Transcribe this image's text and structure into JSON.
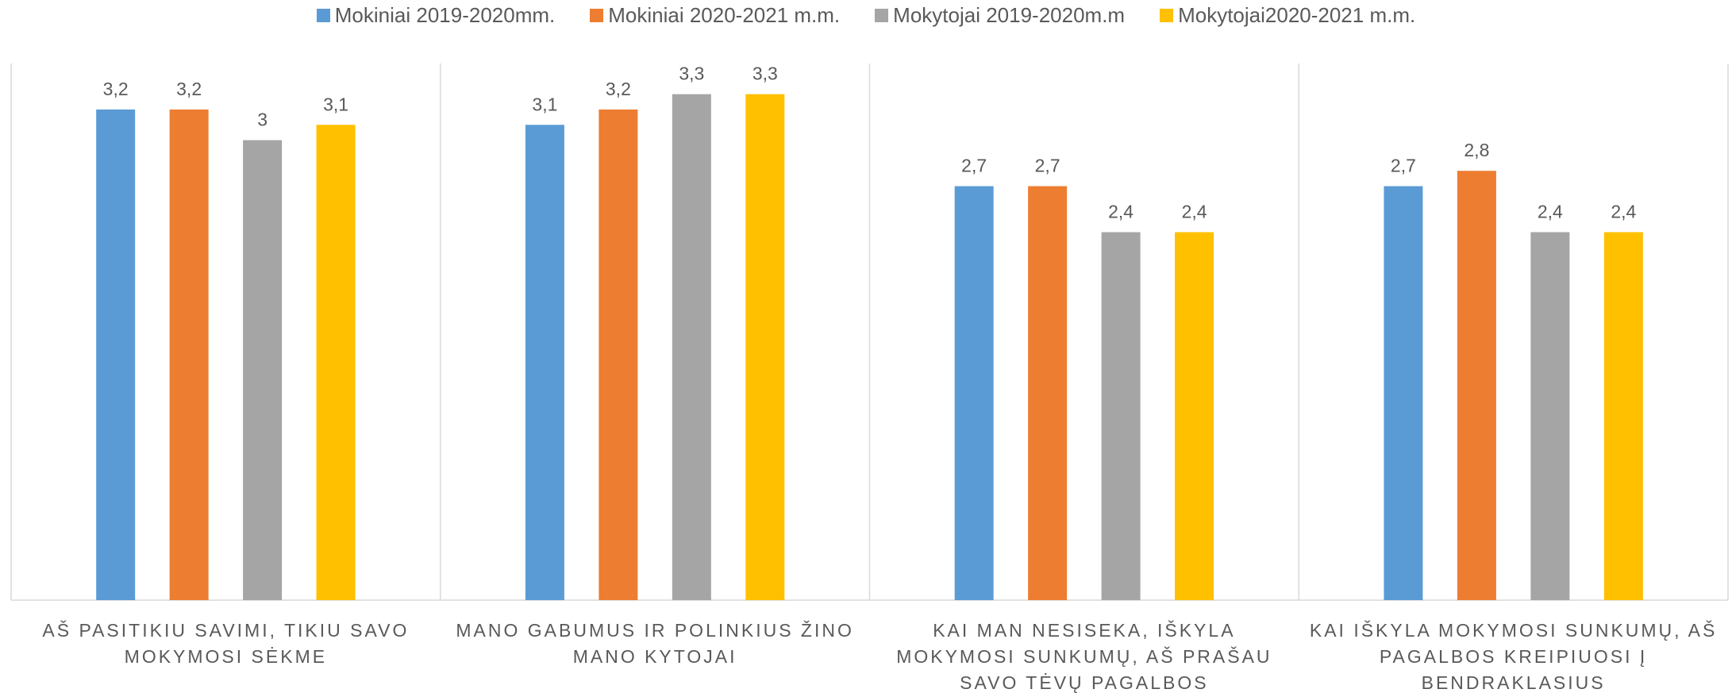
{
  "chart_data": {
    "type": "bar",
    "categories": [
      "AŠ PASITIKIU SAVIMI, TIKIU SAVO MOKYMOSI SĖKME",
      "MANO GABUMUS IR POLINKIUS ŽINO MANO KYTOJAI",
      "KAI MAN NESISEKA, IŠKYLA MOKYMOSI SUNKUMŲ, AŠ PRAŠAU SAVO TĖVŲ PAGALBOS",
      "KAI IŠKYLA MOKYMOSI SUNKUMŲ, AŠ PAGALBOS KREIPIUOSI Į BENDRAKLASIUS"
    ],
    "series": [
      {
        "name": "Mokiniai 2019-2020mm.",
        "color": "#5b9bd5",
        "values": [
          3.2,
          3.1,
          2.7,
          2.7
        ],
        "value_labels": [
          "3,2",
          "3,1",
          "2,7",
          "2,7"
        ]
      },
      {
        "name": "Mokiniai 2020-2021 m.m.",
        "color": "#ed7d31",
        "values": [
          3.2,
          3.2,
          2.7,
          2.8
        ],
        "value_labels": [
          "3,2",
          "3,2",
          "2,7",
          "2,8"
        ]
      },
      {
        "name": "Mokytojai 2019-2020m.m",
        "color": "#a5a5a5",
        "values": [
          3,
          3.3,
          2.4,
          2.4
        ],
        "value_labels": [
          "3",
          "3,3",
          "2,4",
          "2,4"
        ]
      },
      {
        "name": "Mokytojai2020-2021 m.m.",
        "color": "#ffc000",
        "values": [
          3.1,
          3.3,
          2.4,
          2.4
        ],
        "value_labels": [
          "3,1",
          "3,3",
          "2,4",
          "2,4"
        ]
      }
    ],
    "ylim": [
      0,
      3.5
    ],
    "legend": "top"
  }
}
